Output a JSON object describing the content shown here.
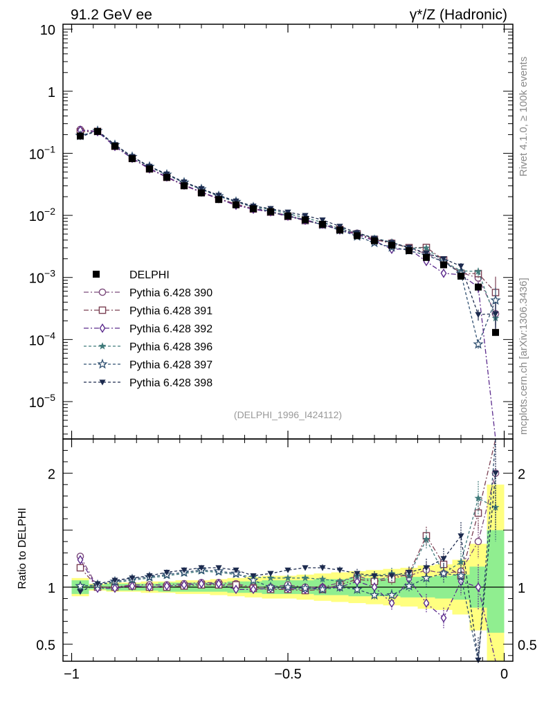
{
  "header": {
    "left_title": "91.2 GeV ee",
    "right_title": "γ*/Z (Hadronic)"
  },
  "side_labels": {
    "rivet": "Rivet 4.1.0, ≥ 100k events",
    "mcplots": "mcplots.cern.ch [arXiv:1306.3436]"
  },
  "analysis_tag": "(DELPHI_1996_I424112)",
  "colors": {
    "data": "#000000",
    "band_inner": "#90ee90",
    "band_outer": "#ffff80",
    "s390": "#7b4a7b",
    "s391": "#7a3f52",
    "s392": "#5b2a8c",
    "s396": "#3f7a7a",
    "s397": "#2f4f70",
    "s398": "#1c2a4e"
  },
  "chart_data": {
    "type": "line",
    "title": "91.2 GeV ee — γ*/Z (Hadronic)",
    "xlabel": "",
    "main_ylabel": "",
    "ratio_ylabel": "Ratio to DELPHI",
    "xlim": [
      -1.02,
      0.02
    ],
    "main_ylim": [
      2.5e-06,
      12
    ],
    "main_yscale": "log",
    "ratio_ylim": [
      0.35,
      2.3
    ],
    "x_ticks": [
      {
        "value": -1,
        "label": "−1"
      },
      {
        "value": -0.5,
        "label": "−0.5"
      },
      {
        "value": 0,
        "label": "0"
      }
    ],
    "main_y_ticks": [
      {
        "value": 10,
        "base": "10",
        "exp": ""
      },
      {
        "value": 1,
        "base": "1",
        "exp": ""
      },
      {
        "value": 0.1,
        "base": "10",
        "exp": "−1"
      },
      {
        "value": 0.01,
        "base": "10",
        "exp": "−2"
      },
      {
        "value": 0.001,
        "base": "10",
        "exp": "−3"
      },
      {
        "value": 0.0001,
        "base": "10",
        "exp": "−4"
      },
      {
        "value": 1e-05,
        "base": "10",
        "exp": "−5"
      }
    ],
    "ratio_y_ticks": [
      {
        "value": 2,
        "label": "2"
      },
      {
        "value": 1,
        "label": "1"
      },
      {
        "value": 0.5,
        "label": "0.5"
      }
    ],
    "x": [
      -0.98,
      -0.94,
      -0.9,
      -0.86,
      -0.82,
      -0.78,
      -0.74,
      -0.7,
      -0.66,
      -0.62,
      -0.58,
      -0.54,
      -0.5,
      -0.46,
      -0.42,
      -0.38,
      -0.34,
      -0.3,
      -0.26,
      -0.22,
      -0.18,
      -0.14,
      -0.1,
      -0.06,
      -0.02
    ],
    "data": {
      "name": "DELPHI",
      "values": [
        0.19,
        0.225,
        0.13,
        0.082,
        0.056,
        0.041,
        0.03,
        0.023,
        0.018,
        0.0148,
        0.0128,
        0.0115,
        0.0098,
        0.0085,
        0.0072,
        0.0058,
        0.0047,
        0.0039,
        0.0033,
        0.0027,
        0.0021,
        0.0016,
        0.00105,
        0.0007,
        0.00013
      ],
      "band_inner": [
        [
          0.94,
          1.06
        ],
        [
          0.98,
          1.02
        ],
        [
          0.97,
          1.03
        ],
        [
          0.97,
          1.03
        ],
        [
          0.97,
          1.03
        ],
        [
          0.96,
          1.04
        ],
        [
          0.96,
          1.04
        ],
        [
          0.96,
          1.04
        ],
        [
          0.96,
          1.04
        ],
        [
          0.95,
          1.05
        ],
        [
          0.95,
          1.05
        ],
        [
          0.94,
          1.06
        ],
        [
          0.94,
          1.06
        ],
        [
          0.94,
          1.06
        ],
        [
          0.93,
          1.07
        ],
        [
          0.93,
          1.07
        ],
        [
          0.92,
          1.08
        ],
        [
          0.92,
          1.08
        ],
        [
          0.92,
          1.08
        ],
        [
          0.91,
          1.09
        ],
        [
          0.91,
          1.09
        ],
        [
          0.9,
          1.1
        ],
        [
          0.89,
          1.11
        ],
        [
          0.82,
          1.18
        ],
        [
          0.6,
          1.5
        ]
      ],
      "band_outer": [
        [
          0.92,
          1.08
        ],
        [
          0.97,
          1.03
        ],
        [
          0.96,
          1.04
        ],
        [
          0.96,
          1.04
        ],
        [
          0.95,
          1.05
        ],
        [
          0.95,
          1.05
        ],
        [
          0.94,
          1.06
        ],
        [
          0.94,
          1.06
        ],
        [
          0.93,
          1.07
        ],
        [
          0.92,
          1.08
        ],
        [
          0.91,
          1.09
        ],
        [
          0.9,
          1.1
        ],
        [
          0.9,
          1.1
        ],
        [
          0.89,
          1.11
        ],
        [
          0.88,
          1.12
        ],
        [
          0.87,
          1.13
        ],
        [
          0.86,
          1.14
        ],
        [
          0.85,
          1.15
        ],
        [
          0.84,
          1.16
        ],
        [
          0.83,
          1.17
        ],
        [
          0.81,
          1.19
        ],
        [
          0.8,
          1.2
        ],
        [
          0.76,
          1.24
        ],
        [
          0.62,
          1.38
        ],
        [
          0.35,
          1.9
        ]
      ]
    },
    "series": [
      {
        "id": "s390",
        "name": "Pythia 6.428 390",
        "marker": "circle-open",
        "dash": "7,3,2,3",
        "ratio": [
          1.27,
          1.0,
          1.0,
          1.02,
          1.02,
          1.02,
          1.03,
          1.04,
          1.04,
          1.03,
          1.0,
          1.0,
          1.02,
          1.0,
          1.0,
          1.04,
          1.1,
          1.05,
          1.1,
          1.1,
          1.15,
          1.12,
          1.14,
          1.4,
          2.0
        ],
        "err": [
          0.02,
          0.01,
          0.01,
          0.01,
          0.01,
          0.01,
          0.01,
          0.01,
          0.01,
          0.01,
          0.02,
          0.02,
          0.02,
          0.02,
          0.03,
          0.03,
          0.04,
          0.04,
          0.05,
          0.05,
          0.07,
          0.08,
          0.1,
          0.15,
          0.4
        ]
      },
      {
        "id": "s391",
        "name": "Pythia 6.428 391",
        "marker": "square-open",
        "dash": "7,3,2,3",
        "ratio": [
          1.17,
          1.0,
          1.0,
          1.01,
          1.0,
          1.0,
          1.01,
          1.02,
          1.02,
          1.02,
          0.99,
          0.98,
          0.98,
          0.97,
          0.98,
          1.02,
          1.07,
          1.05,
          1.07,
          1.12,
          1.45,
          1.2,
          1.1,
          1.65,
          4.4
        ],
        "err": [
          0.02,
          0.01,
          0.01,
          0.01,
          0.01,
          0.01,
          0.01,
          0.01,
          0.01,
          0.01,
          0.02,
          0.02,
          0.02,
          0.02,
          0.03,
          0.03,
          0.04,
          0.04,
          0.05,
          0.05,
          0.08,
          0.08,
          0.1,
          0.15,
          0.8
        ]
      },
      {
        "id": "s392",
        "name": "Pythia 6.428 392",
        "marker": "diamond-open",
        "dash": "7,3,2,3",
        "ratio": [
          1.24,
          0.99,
          0.99,
          1.01,
          1.0,
          1.01,
          1.02,
          1.03,
          1.03,
          0.98,
          0.98,
          0.99,
          0.99,
          0.98,
          1.0,
          1.0,
          1.05,
          1.0,
          0.86,
          1.07,
          0.86,
          0.73,
          1.05,
          1.0,
          0.014
        ],
        "err": [
          0.02,
          0.01,
          0.01,
          0.01,
          0.01,
          0.01,
          0.01,
          0.01,
          0.01,
          0.01,
          0.02,
          0.02,
          0.02,
          0.02,
          0.03,
          0.03,
          0.04,
          0.04,
          0.06,
          0.06,
          0.08,
          0.09,
          0.12,
          0.2,
          0.3
        ]
      },
      {
        "id": "s396",
        "name": "Pythia 6.428 396",
        "marker": "star-filled",
        "dash": "4,3",
        "ratio": [
          1.01,
          1.02,
          1.04,
          1.06,
          1.08,
          1.1,
          1.12,
          1.14,
          1.13,
          1.11,
          1.09,
          1.08,
          1.08,
          1.08,
          1.07,
          1.05,
          1.1,
          1.1,
          1.12,
          1.1,
          1.42,
          1.12,
          1.22,
          1.78,
          1.7
        ],
        "err": [
          0.02,
          0.01,
          0.01,
          0.01,
          0.01,
          0.01,
          0.01,
          0.01,
          0.01,
          0.01,
          0.02,
          0.02,
          0.02,
          0.02,
          0.03,
          0.03,
          0.04,
          0.04,
          0.05,
          0.05,
          0.08,
          0.08,
          0.1,
          0.15,
          0.3
        ]
      },
      {
        "id": "s397",
        "name": "Pythia 6.428 397",
        "marker": "star-open",
        "dash": "4,3",
        "ratio": [
          1.01,
          1.02,
          1.05,
          1.07,
          1.09,
          1.11,
          1.13,
          1.15,
          1.14,
          1.12,
          1.06,
          1.0,
          1.0,
          0.99,
          0.98,
          1.0,
          0.98,
          0.93,
          0.93,
          1.01,
          1.08,
          1.12,
          1.1,
          0.12,
          3.3
        ],
        "err": [
          0.02,
          0.01,
          0.01,
          0.01,
          0.01,
          0.01,
          0.01,
          0.01,
          0.01,
          0.01,
          0.02,
          0.02,
          0.02,
          0.02,
          0.03,
          0.03,
          0.04,
          0.04,
          0.05,
          0.05,
          0.08,
          0.08,
          0.1,
          0.15,
          0.6
        ]
      },
      {
        "id": "s398",
        "name": "Pythia 6.428 398",
        "marker": "triangle-down-filled",
        "dash": "4,3",
        "ratio": [
          0.96,
          1.03,
          1.06,
          1.08,
          1.1,
          1.13,
          1.15,
          1.17,
          1.17,
          1.15,
          1.1,
          1.12,
          1.15,
          1.17,
          1.17,
          1.15,
          1.12,
          1.1,
          1.1,
          1.13,
          1.17,
          1.25,
          1.45,
          0.36,
          2.0
        ],
        "err": [
          0.02,
          0.01,
          0.01,
          0.01,
          0.01,
          0.01,
          0.01,
          0.01,
          0.01,
          0.01,
          0.02,
          0.02,
          0.02,
          0.02,
          0.03,
          0.03,
          0.04,
          0.04,
          0.05,
          0.05,
          0.08,
          0.09,
          0.12,
          0.2,
          0.5
        ]
      }
    ]
  }
}
